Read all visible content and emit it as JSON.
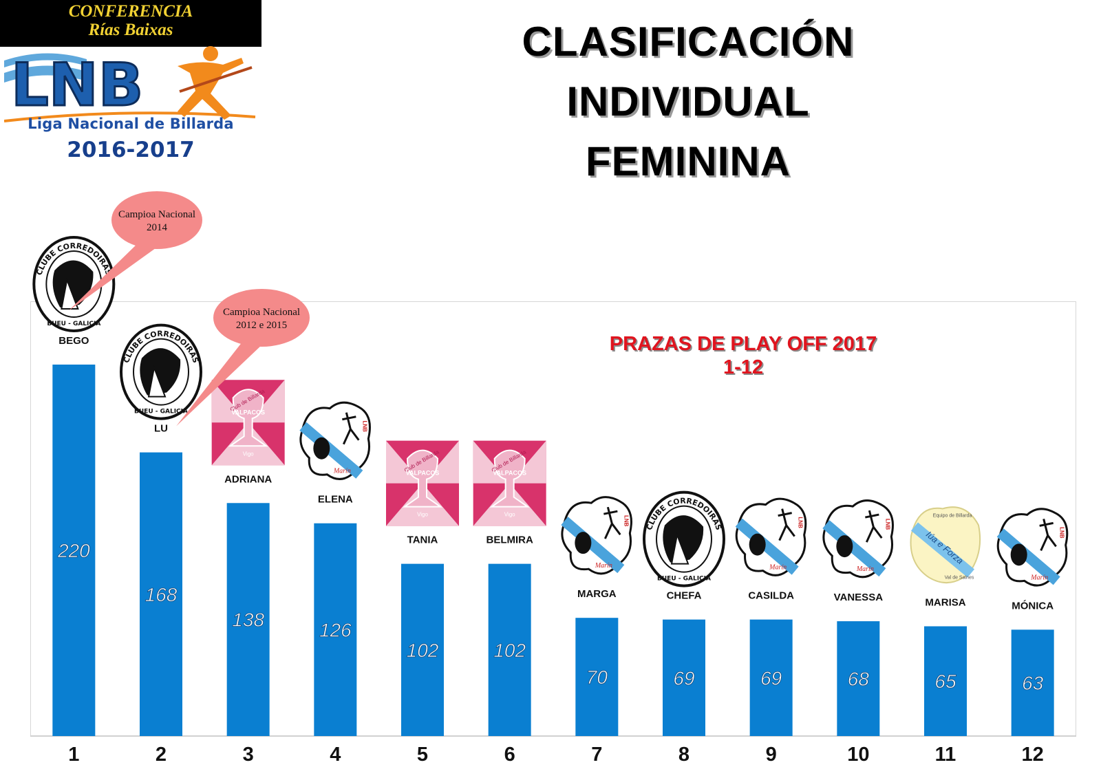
{
  "header": {
    "conference_line1": "CONFERENCIA",
    "conference_line2": "Rías Baixas",
    "logo_text": "LNB",
    "logo_subtitle": "Liga Nacional de Billarda",
    "season": "2016-2017"
  },
  "title": {
    "line1": "CLASIFICACIÓN",
    "line2": "INDIVIDUAL",
    "line3": "FEMININA"
  },
  "annotation": {
    "line1": "PRAZAS DE PLAY OFF 2017",
    "line2": "1-12"
  },
  "callouts": [
    {
      "line1": "Campioa Nacional",
      "line2": "2014",
      "target": "BEGO"
    },
    {
      "line1": "Campioa Nacional",
      "line2": "2012 e 2015",
      "target": "LU"
    }
  ],
  "club_logos": {
    "corredoiras": {
      "line1": "CLUBE CORREDOIRAS",
      "line2": "BUEU - GALICIA"
    },
    "valpacos": {
      "line1": "Club de Billarda",
      "line2": "VALPACOS",
      "line3": "Vigo"
    },
    "marin": {
      "line1": "LNB",
      "line2": "Marín"
    },
    "valdesaines": {
      "line1": "Equipo de Billarda",
      "line2": "Iúa e Forza",
      "line3": "Val de Saines"
    }
  },
  "chart_data": {
    "type": "bar",
    "categories": [
      "1",
      "2",
      "3",
      "4",
      "5",
      "6",
      "7",
      "8",
      "9",
      "10",
      "11",
      "12"
    ],
    "players": [
      "BEGO",
      "LU",
      "ADRIANA",
      "ELENA",
      "TANIA",
      "BELMIRA",
      "MARGA",
      "CHEFA",
      "CASILDA",
      "VANESSA",
      "MARISA",
      "MÓNICA"
    ],
    "values": [
      220,
      168,
      138,
      126,
      102,
      102,
      70,
      69,
      69,
      68,
      65,
      63
    ],
    "clubs": [
      "corredoiras",
      "corredoiras",
      "valpacos",
      "marin",
      "valpacos",
      "valpacos",
      "marin",
      "corredoiras",
      "marin",
      "marin",
      "valdesaines",
      "marin"
    ],
    "bar_color": "#0a7fd1",
    "ylim": [
      0,
      250
    ],
    "grid": false,
    "legend": "none"
  }
}
